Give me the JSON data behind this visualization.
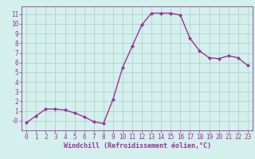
{
  "x": [
    0,
    1,
    2,
    3,
    4,
    5,
    6,
    7,
    8,
    9,
    10,
    11,
    12,
    13,
    14,
    15,
    16,
    17,
    18,
    19,
    20,
    21,
    22,
    23
  ],
  "y": [
    -0.2,
    0.5,
    1.2,
    1.2,
    1.1,
    0.8,
    0.4,
    -0.1,
    -0.3,
    2.2,
    5.5,
    7.7,
    9.9,
    11.1,
    11.1,
    11.1,
    10.9,
    8.5,
    7.2,
    6.5,
    6.4,
    6.7,
    6.5,
    5.7
  ],
  "line_color": "#993399",
  "marker": "D",
  "marker_size": 2,
  "bg_color": "#d4f0ec",
  "grid_color": "#aacccc",
  "xlabel": "Windchill (Refroidissement éolien,°C)",
  "xlabel_color": "#993399",
  "xlim": [
    -0.5,
    23.5
  ],
  "ylim": [
    -1.0,
    11.8
  ],
  "yticks": [
    0,
    1,
    2,
    3,
    4,
    5,
    6,
    7,
    8,
    9,
    10,
    11
  ],
  "ytick_labels": [
    "-0",
    "1",
    "2",
    "3",
    "4",
    "5",
    "6",
    "7",
    "8",
    "9",
    "10",
    "11"
  ],
  "xticks": [
    0,
    1,
    2,
    3,
    4,
    5,
    6,
    7,
    8,
    9,
    10,
    11,
    12,
    13,
    14,
    15,
    16,
    17,
    18,
    19,
    20,
    21,
    22,
    23
  ],
  "tick_color": "#993399",
  "spine_color": "#993399",
  "tick_fontsize": 5.5,
  "xlabel_fontsize": 6.0,
  "line_width": 1.0
}
